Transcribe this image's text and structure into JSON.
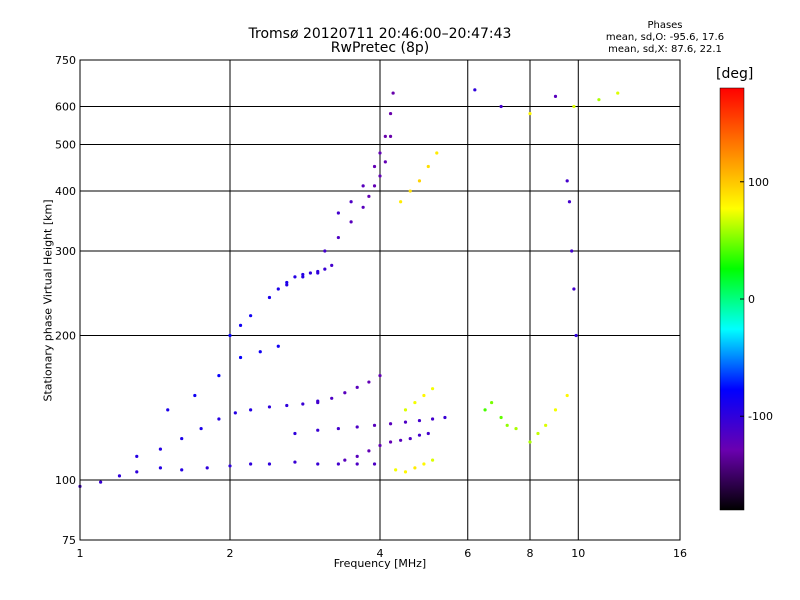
{
  "chart_data": {
    "type": "scatter",
    "title": "Tromsø 20120711 20:46:00–20:47:43",
    "subtitle": "RwPretec (8p)",
    "stats": {
      "heading": "Phases",
      "line_o": "mean, sd,O: -95.6, 17.6",
      "line_x": "mean, sd,X:  87.6, 22.1"
    },
    "xlabel": "Frequency [MHz]",
    "ylabel": "Stationary phase Virtual Height [km]",
    "x_scale": "log",
    "y_scale": "log",
    "xlim": [
      1,
      16
    ],
    "ylim": [
      75,
      750
    ],
    "x_ticks": [
      1,
      2,
      4,
      6,
      8,
      10,
      16
    ],
    "y_ticks": [
      75,
      100,
      200,
      300,
      400,
      500,
      600,
      750
    ],
    "x_gridlines": [
      2,
      4,
      6,
      8,
      10
    ],
    "y_gridlines": [
      100,
      200,
      300,
      400,
      500,
      600
    ],
    "colorbar": {
      "unit": "[deg]",
      "range": [
        -180,
        180
      ],
      "ticks": [
        100,
        0,
        -100
      ],
      "colors": [
        "#000000",
        "#6a00b0",
        "#0000ff",
        "#00ffff",
        "#00ff00",
        "#ffff00",
        "#ff8000",
        "#ff0000"
      ]
    },
    "series": [
      {
        "x": [
          1.0,
          1.1,
          1.2,
          1.3,
          1.45,
          1.6,
          1.8,
          2.0,
          2.2,
          2.4,
          2.7,
          3.0,
          3.3,
          3.6,
          3.9
        ],
        "y": [
          97,
          99,
          102,
          104,
          106,
          105,
          106,
          107,
          108,
          108,
          109,
          108,
          108,
          108,
          108
        ],
        "phase": [
          -110,
          -105,
          -100,
          -100,
          -95,
          -95,
          -100,
          -100,
          -100,
          -100,
          -105,
          -105,
          -110,
          -115,
          -115
        ]
      },
      {
        "x": [
          1.3,
          1.45,
          1.6,
          1.75,
          1.9,
          2.05,
          2.2,
          2.4,
          2.6,
          2.8,
          3.0
        ],
        "y": [
          112,
          116,
          122,
          128,
          134,
          138,
          140,
          142,
          143,
          144,
          146
        ],
        "phase": [
          -95,
          -95,
          -90,
          -90,
          -95,
          -95,
          -95,
          -100,
          -100,
          -105,
          -105
        ]
      },
      {
        "x": [
          1.5,
          1.7,
          1.9,
          2.1,
          2.3,
          2.5
        ],
        "y": [
          140,
          150,
          165,
          180,
          185,
          190
        ],
        "phase": [
          -90,
          -85,
          -80,
          -80,
          -85,
          -85
        ]
      },
      {
        "x": [
          2.0,
          2.1,
          2.2,
          2.4,
          2.6,
          2.8,
          3.0
        ],
        "y": [
          200,
          210,
          220,
          240,
          255,
          265,
          270
        ],
        "phase": [
          -80,
          -85,
          -85,
          -90,
          -95,
          -95,
          -100
        ]
      },
      {
        "x": [
          2.5,
          2.6,
          2.7,
          2.8,
          2.9,
          3.0,
          3.1,
          3.2
        ],
        "y": [
          250,
          258,
          265,
          268,
          270,
          272,
          275,
          280
        ],
        "phase": [
          -90,
          -90,
          -95,
          -95,
          -100,
          -100,
          -105,
          -110
        ]
      },
      {
        "x": [
          3.1,
          3.3,
          3.5,
          3.7,
          3.8,
          3.9,
          4.0,
          4.1,
          4.2
        ],
        "y": [
          300,
          320,
          345,
          370,
          390,
          410,
          430,
          460,
          520
        ],
        "phase": [
          -110,
          -115,
          -120,
          -120,
          -125,
          -125,
          -125,
          -125,
          -130
        ]
      },
      {
        "x": [
          3.3,
          3.5,
          3.7,
          3.9,
          4.0,
          4.1,
          4.2,
          4.25
        ],
        "y": [
          360,
          380,
          410,
          450,
          480,
          520,
          580,
          640
        ],
        "phase": [
          -110,
          -115,
          -120,
          -125,
          -125,
          -130,
          -130,
          -130
        ]
      },
      {
        "x": [
          3.4,
          3.6,
          3.8,
          4.0,
          4.2,
          4.4,
          4.6,
          4.8,
          5.0
        ],
        "y": [
          110,
          112,
          115,
          118,
          120,
          121,
          122,
          124,
          125
        ],
        "phase": [
          -120,
          -120,
          -125,
          -125,
          -125,
          -120,
          -115,
          -110,
          -110
        ]
      },
      {
        "x": [
          2.7,
          3.0,
          3.3,
          3.6,
          3.9,
          4.2,
          4.5,
          4.8,
          5.1,
          5.4
        ],
        "y": [
          125,
          127,
          128,
          129,
          130,
          131,
          132,
          133,
          134,
          135
        ],
        "phase": [
          -100,
          -105,
          -110,
          -115,
          -120,
          -120,
          -115,
          -110,
          -110,
          -105
        ]
      },
      {
        "x": [
          3.0,
          3.2,
          3.4,
          3.6,
          3.8,
          4.0
        ],
        "y": [
          145,
          148,
          152,
          156,
          160,
          165
        ],
        "phase": [
          -110,
          -115,
          -120,
          -120,
          -125,
          -125
        ]
      },
      {
        "x": [
          4.3,
          4.5,
          4.7,
          4.9,
          5.1
        ],
        "y": [
          105,
          104,
          106,
          108,
          110
        ],
        "phase": [
          75,
          80,
          85,
          80,
          70
        ]
      },
      {
        "x": [
          4.4,
          4.6,
          4.8,
          5.0,
          5.2
        ],
        "y": [
          380,
          400,
          420,
          450,
          480
        ],
        "phase": [
          85,
          90,
          95,
          90,
          85
        ]
      },
      {
        "x": [
          4.5,
          4.7,
          4.9,
          5.1
        ],
        "y": [
          140,
          145,
          150,
          155
        ],
        "phase": [
          70,
          75,
          80,
          75
        ]
      },
      {
        "x": [
          6.5,
          6.7,
          7.0,
          7.2,
          7.5
        ],
        "y": [
          140,
          145,
          135,
          130,
          128
        ],
        "phase": [
          40,
          50,
          45,
          55,
          60
        ]
      },
      {
        "x": [
          8.0,
          8.3,
          8.6,
          9.0,
          9.5
        ],
        "y": [
          120,
          125,
          130,
          140,
          150
        ],
        "phase": [
          60,
          65,
          70,
          75,
          80
        ]
      },
      {
        "x": [
          6.2,
          7.0,
          8.0,
          9.0,
          9.8,
          11.0,
          12.0
        ],
        "y": [
          650,
          600,
          580,
          630,
          600,
          620,
          640
        ],
        "phase": [
          -100,
          -110,
          80,
          -120,
          70,
          60,
          70
        ]
      },
      {
        "x": [
          9.5,
          9.6,
          9.7,
          9.8,
          9.9
        ],
        "y": [
          420,
          380,
          300,
          250,
          200
        ],
        "phase": [
          -110,
          -110,
          -110,
          -110,
          -100
        ]
      }
    ]
  }
}
